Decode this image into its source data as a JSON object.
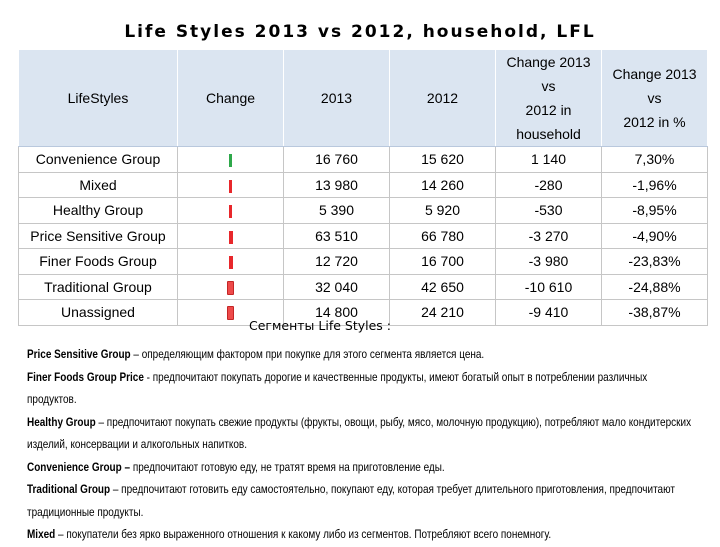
{
  "title": "Life Styles 2013 vs 2012, household, LFL",
  "table": {
    "headers": {
      "lifestyles": "LifeStyles",
      "change": "Change",
      "y2013": "2013",
      "y2012": "2012",
      "change_hh_line1": "Change 2013 vs",
      "change_hh_line2": "2012 in household",
      "change_pct_line1": "Change 2013 vs",
      "change_pct_line2": "2012 in %"
    },
    "rows": [
      {
        "name": "Convenience Group",
        "indicator": "green",
        "v2013": "16 760",
        "v2012": "15 620",
        "diff": "1 140",
        "pct": "7,30%"
      },
      {
        "name": "Mixed",
        "indicator": "red",
        "v2013": "13 980",
        "v2012": "14 260",
        "diff": "-280",
        "pct": "-1,96%"
      },
      {
        "name": "Healthy Group",
        "indicator": "red",
        "v2013": "5 390",
        "v2012": "5 920",
        "diff": "-530",
        "pct": "-8,95%"
      },
      {
        "name": "Price Sensitive Group",
        "indicator": "red",
        "v2013": "63 510",
        "v2012": "66 780",
        "diff": "-3 270",
        "pct": "-4,90%"
      },
      {
        "name": "Finer Foods Group",
        "indicator": "red",
        "v2013": "12 720",
        "v2012": "16 700",
        "diff": "-3 980",
        "pct": "-23,83%"
      },
      {
        "name": "Traditional Group",
        "indicator": "red",
        "v2013": "32 040",
        "v2012": "42 650",
        "diff": "-10 610",
        "pct": "-24,88%"
      },
      {
        "name": "Unassigned",
        "indicator": "red",
        "v2013": "14 800",
        "v2012": "24 210",
        "diff": "-9 410",
        "pct": "-38,87%"
      }
    ]
  },
  "subtitle": "Сегменты Life Styles :",
  "definitions": [
    {
      "term": "Price Sensitive Group",
      "text": " – определяющим фактором при покупке для этого сегмента является цена."
    },
    {
      "term": "Finer Foods Group Price",
      "text": " - предпочитают покупать дорогие и качественные продукты, имеют богатый опыт в потреблении различных продуктов."
    },
    {
      "term": "Healthy Group",
      "text": " – предпочитают покупать свежие продукты (фрукты, овощи, рыбу, мясо, молочную продукцию), потребляют мало кондитерских изделий, консервации и алкогольных напитков."
    },
    {
      "term": "Convenience Group –",
      "text": " предпочитают готовую еду, не тратят время на приготовление еды."
    },
    {
      "term": "Traditional Group",
      "text": " – предпочитают готовить еду самостоятельно, покупают еду, которая требует длительного приготовления, предпочитают традиционные продукты."
    },
    {
      "term": "Mixed",
      "text": " – покупатели без ярко выраженного отношения к какому либо из сегментов. Потребляют всего понемногу."
    }
  ]
}
